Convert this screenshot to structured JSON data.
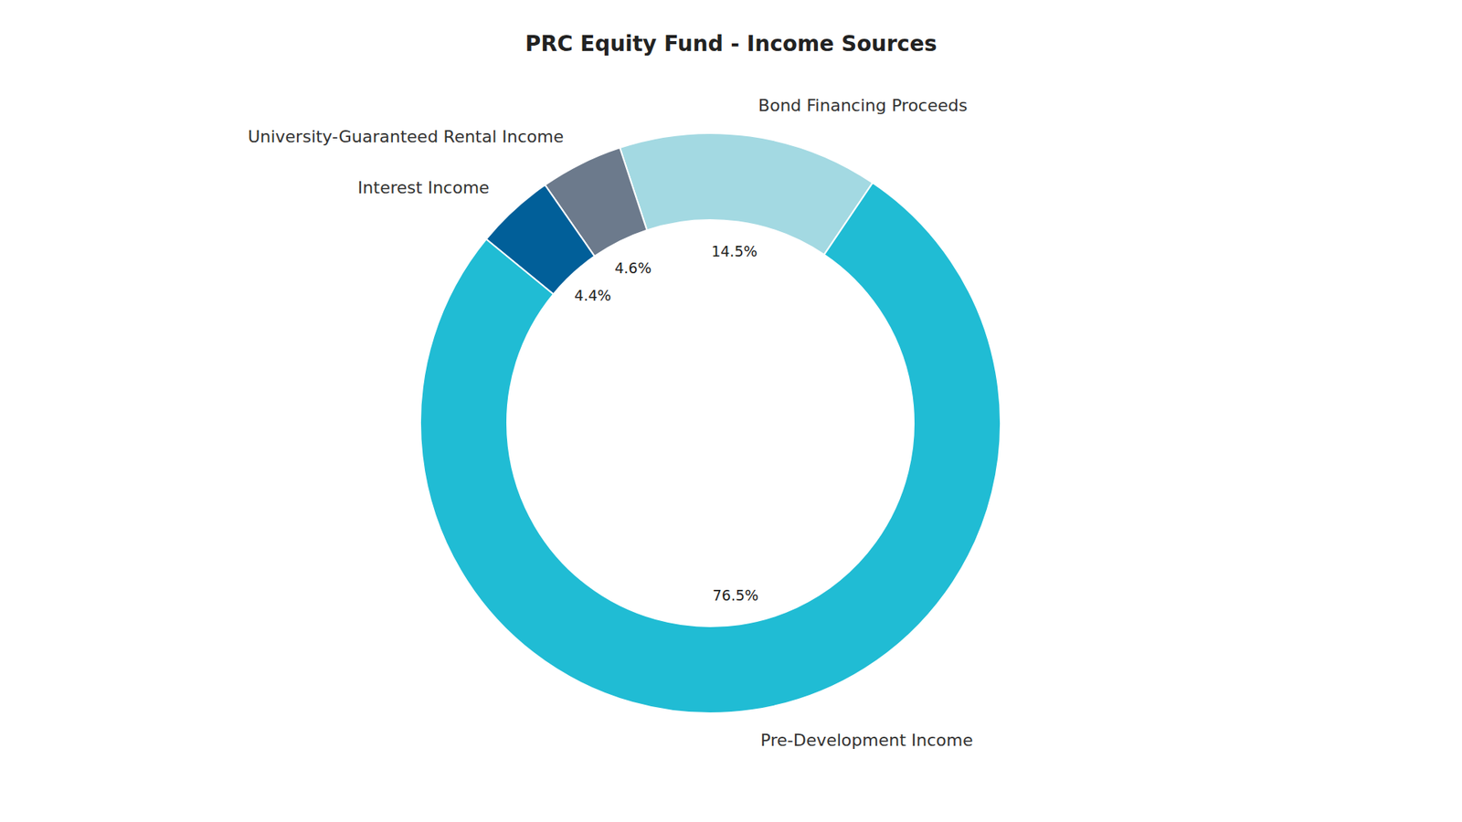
{
  "chart_data": {
    "type": "pie",
    "title": "PRC Equity Fund - Income Sources",
    "categories": [
      "Bond Financing Proceeds",
      "University-Guaranteed Rental Income",
      "Interest Income",
      "Pre-Development Income"
    ],
    "values": [
      14.5,
      4.6,
      4.4,
      76.5
    ],
    "value_labels": [
      "14.5%",
      "4.6%",
      "4.4%",
      "76.5%"
    ],
    "colors": [
      "#a3d9e2",
      "#6c7a8c",
      "#015f99",
      "#20bcd4"
    ],
    "data_labels": true
  }
}
